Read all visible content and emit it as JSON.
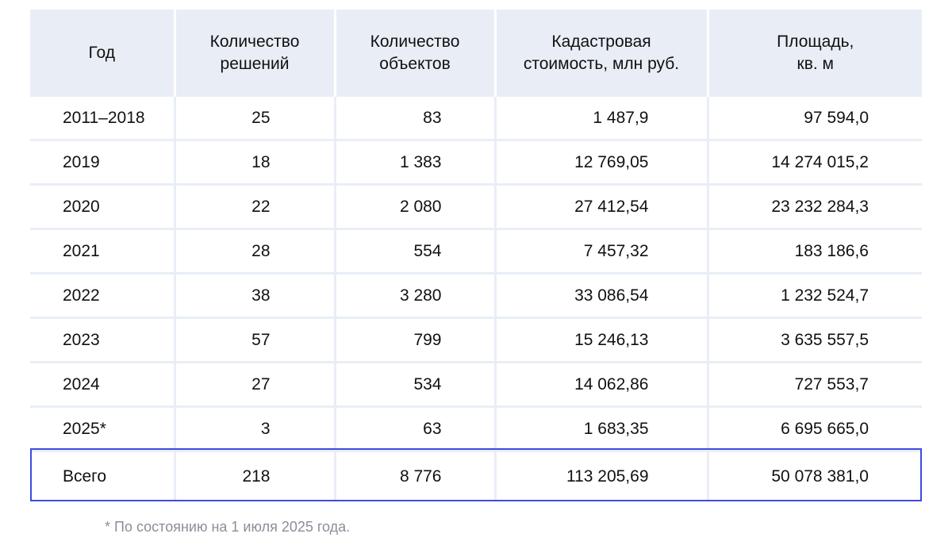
{
  "table": {
    "headers": [
      {
        "line1": "Год",
        "line2": ""
      },
      {
        "line1": "Количество",
        "line2": "решений"
      },
      {
        "line1": "Количество",
        "line2": "объектов"
      },
      {
        "line1": "Кадастровая",
        "line2": "стоимость, млн руб."
      },
      {
        "line1": "Площадь,",
        "line2": "кв. м"
      }
    ],
    "rows": [
      [
        "2011–2018",
        "25",
        "83",
        "1 487,9",
        "97 594,0"
      ],
      [
        "2019",
        "18",
        "1 383",
        "12 769,05",
        "14 274 015,2"
      ],
      [
        "2020",
        "22",
        "2 080",
        "27 412,54",
        "23 232 284,3"
      ],
      [
        "2021",
        "28",
        "554",
        "7 457,32",
        "183 186,6"
      ],
      [
        "2022",
        "38",
        "3 280",
        "33 086,54",
        "1 232 524,7"
      ],
      [
        "2023",
        "57",
        "799",
        "15 246,13",
        "3 635 557,5"
      ],
      [
        "2024",
        "27",
        "534",
        "14 062,86",
        "727 553,7"
      ],
      [
        "2025*",
        "3",
        "63",
        "1 683,35",
        "6 695 665,0"
      ]
    ],
    "total": [
      "Всего",
      "218",
      "8 776",
      "113 205,69",
      "50 078 381,0"
    ]
  },
  "footnote": "* По состоянию на 1 июля 2025 года."
}
